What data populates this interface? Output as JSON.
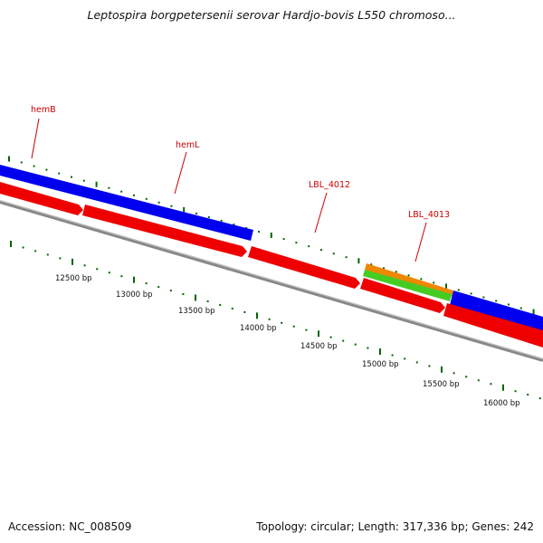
{
  "title": "Leptospira borgpetersenii serovar Hardjo-bovis L550 chromoso...",
  "footer": {
    "accession": "Accession: NC_008509",
    "summary": "Topology: circular; Length: 317,336 bp; Genes: 242"
  },
  "colors": {
    "forward_cds": "#0000ee",
    "reverse_cds": "#ee0000",
    "orange_feature": "#ee8800",
    "green_feature": "#44cc22",
    "backbone": "#888888",
    "tick": "#006600",
    "label": "#cc0000"
  },
  "gene_labels": [
    "hemB",
    "hemL",
    "LBL_4012",
    "LBL_4013"
  ],
  "ruler_labels": [
    "12500 bp",
    "13000 bp",
    "13500 bp",
    "14000 bp",
    "14500 bp",
    "15000 bp",
    "15500 bp",
    "16000 bp"
  ]
}
